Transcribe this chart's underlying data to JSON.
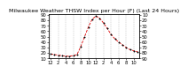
{
  "title": "Milwaukee Weather THSW Index per Hour (F) (Last 24 Hours)",
  "hours": [
    0,
    1,
    2,
    3,
    4,
    5,
    6,
    7,
    8,
    9,
    10,
    11,
    12,
    13,
    14,
    15,
    16,
    17,
    18,
    19,
    20,
    21,
    22,
    23
  ],
  "values": [
    18,
    17,
    16,
    15,
    14,
    14,
    15,
    17,
    32,
    50,
    68,
    82,
    88,
    84,
    75,
    65,
    54,
    46,
    40,
    35,
    30,
    26,
    24,
    22
  ],
  "ylim": [
    10,
    92
  ],
  "yticks": [
    10,
    20,
    30,
    40,
    50,
    60,
    70,
    80,
    90
  ],
  "ytick_labels": [
    "10",
    "20",
    "30",
    "40",
    "50",
    "60",
    "70",
    "80",
    "90"
  ],
  "xtick_positions": [
    0,
    2,
    4,
    6,
    8,
    10,
    12,
    14,
    16,
    18,
    20,
    22
  ],
  "xtick_labels": [
    "12",
    "2",
    "4",
    "6",
    "8",
    "10",
    "12",
    "2",
    "4",
    "6",
    "8",
    "10"
  ],
  "line_color": "#dd0000",
  "marker_color": "#000000",
  "bg_color": "#ffffff",
  "grid_color": "#999999",
  "vline_positions": [
    0,
    2,
    4,
    6,
    8,
    10,
    12,
    14,
    16,
    18,
    20,
    22
  ],
  "title_fontsize": 4.5,
  "tick_fontsize": 3.8,
  "right_ytick_labels": [
    "90",
    "80",
    "70",
    "60",
    "50",
    "40",
    "30",
    "20",
    "10"
  ]
}
